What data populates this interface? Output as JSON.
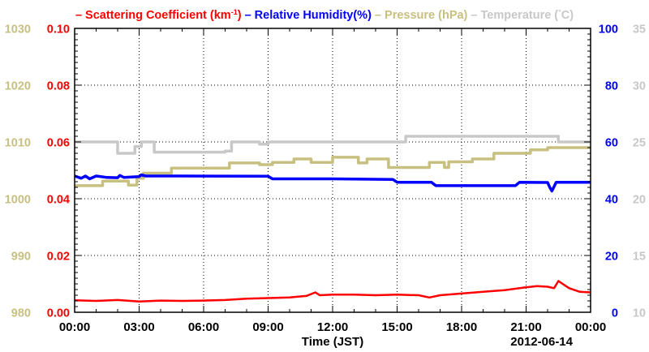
{
  "chart_data": {
    "type": "line",
    "title": "",
    "legend": [
      {
        "prefix": "–",
        "text": "Scattering Coefficient (km",
        "sup": "-1",
        "suffix": ")",
        "color": "#ff0000"
      },
      {
        "prefix": "–",
        "text": "Relative Humidity(%)",
        "color": "#0000ff"
      },
      {
        "prefix": "–",
        "text": "Pressure (hPa)",
        "color": "#c8c080"
      },
      {
        "prefix": "–",
        "text": "Temperature (",
        "sup": "°",
        "suffix": "C)",
        "color": "#c8c8c8"
      }
    ],
    "legend_placement": "top",
    "xlabel": "Time (JST)",
    "date_label": "2012-06-14",
    "xlim": [
      0,
      24
    ],
    "x_ticks": [
      0,
      3,
      6,
      9,
      12,
      15,
      18,
      21,
      24
    ],
    "x_tick_labels": [
      "00:00",
      "03:00",
      "06:00",
      "09:00",
      "12:00",
      "15:00",
      "18:00",
      "21:00",
      "00:00"
    ],
    "grid": true,
    "axes": {
      "pressure": {
        "side": "left-outer",
        "color": "#c8c080",
        "lim": [
          980,
          1030
        ],
        "ticks": [
          "980",
          "990",
          "1000",
          "1010",
          "1020",
          "1030"
        ]
      },
      "scattering": {
        "side": "left-inner",
        "color": "#ff0000",
        "lim": [
          0,
          0.1
        ],
        "ticks": [
          "0.00",
          "0.02",
          "0.04",
          "0.06",
          "0.08",
          "0.10"
        ]
      },
      "humidity": {
        "side": "right-inner",
        "color": "#0000ff",
        "lim": [
          0,
          100
        ],
        "ticks": [
          "0",
          "20",
          "40",
          "60",
          "80",
          "100"
        ]
      },
      "temperature": {
        "side": "right-outer",
        "color": "#c8c8c8",
        "lim": [
          10,
          35
        ],
        "ticks": [
          "10",
          "15",
          "20",
          "25",
          "30",
          "35"
        ]
      }
    },
    "series": [
      {
        "key": "temperature",
        "axis": "temperature",
        "color": "#c8c8c8",
        "step": true,
        "x": [
          0,
          2.0,
          2.8,
          3.1,
          3.7,
          7.0,
          7.3,
          8.6,
          9.0,
          15.4,
          22.5,
          23.2,
          24
        ],
        "y": [
          25.0,
          24.0,
          24.6,
          25.0,
          24.1,
          24.2,
          25.0,
          24.8,
          25.0,
          25.5,
          25.0,
          25.0,
          25.0
        ]
      },
      {
        "key": "pressure",
        "axis": "pressure",
        "color": "#c8c080",
        "step": true,
        "x": [
          0,
          1.3,
          2.5,
          2.9,
          3.2,
          4.5,
          7.2,
          8.6,
          9.2,
          10.2,
          11.0,
          12.0,
          13.2,
          13.6,
          14.6,
          16.5,
          17.2,
          17.4,
          18.5,
          19.5,
          21.2,
          22.0,
          24
        ],
        "y": [
          1002.3,
          1003.1,
          1002.4,
          1003.6,
          1004.5,
          1005.4,
          1006.3,
          1006.0,
          1006.4,
          1007.0,
          1006.4,
          1007.3,
          1006.3,
          1007.0,
          1005.5,
          1006.4,
          1005.5,
          1006.5,
          1007.0,
          1008.0,
          1008.6,
          1009.0,
          1009.0
        ]
      },
      {
        "key": "humidity",
        "axis": "humidity",
        "color": "#0000ff",
        "x": [
          0,
          0.3,
          0.5,
          0.7,
          1.0,
          1.5,
          2.0,
          2.1,
          2.3,
          3.0,
          3.1,
          3.3,
          5.0,
          9.0,
          9.2,
          12.0,
          14.8,
          15.0,
          16.6,
          16.8,
          20.5,
          20.7,
          22.0,
          22.1,
          22.2,
          22.4,
          24
        ],
        "y": [
          48.0,
          47.2,
          48.0,
          47.0,
          48.0,
          47.5,
          47.4,
          48.2,
          47.5,
          47.8,
          48.4,
          48.0,
          48.0,
          47.9,
          47.0,
          47.0,
          46.8,
          45.8,
          45.8,
          44.6,
          44.6,
          45.8,
          45.7,
          44.0,
          42.7,
          45.8,
          45.8
        ]
      },
      {
        "key": "scattering",
        "axis": "scattering",
        "color": "#ff0000",
        "x": [
          0,
          1,
          2,
          3,
          4,
          5,
          6,
          7,
          8,
          9,
          10,
          10.8,
          11.2,
          11.4,
          12,
          13,
          14,
          15,
          16,
          16.5,
          17,
          18,
          19,
          20,
          21,
          21.5,
          22,
          22.3,
          22.5,
          23,
          23.5,
          24
        ],
        "y": [
          0.0042,
          0.004,
          0.0043,
          0.0038,
          0.0041,
          0.004,
          0.0041,
          0.0043,
          0.0048,
          0.005,
          0.0052,
          0.0058,
          0.007,
          0.006,
          0.0062,
          0.0062,
          0.006,
          0.0062,
          0.006,
          0.0052,
          0.006,
          0.0066,
          0.0072,
          0.0078,
          0.0088,
          0.0092,
          0.009,
          0.0085,
          0.011,
          0.0085,
          0.0072,
          0.007
        ]
      }
    ]
  }
}
